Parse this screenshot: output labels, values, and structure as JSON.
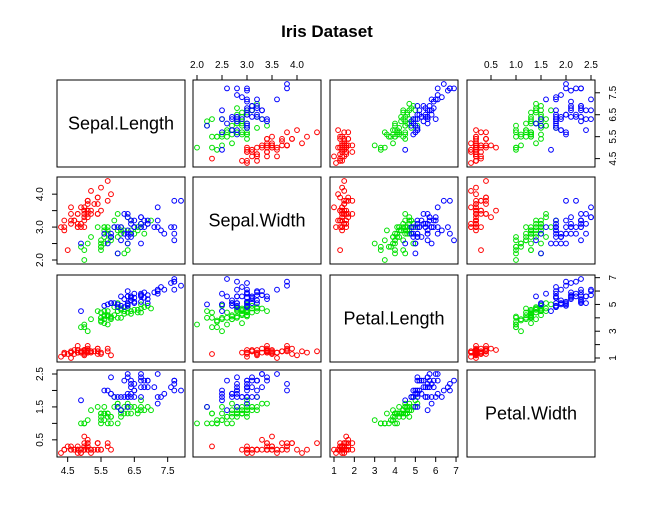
{
  "chart_data": {
    "type": "scatter",
    "subtype": "scatterplot-matrix",
    "title": "Iris Dataset",
    "grid": false,
    "variables": [
      "Sepal.Length",
      "Sepal.Width",
      "Petal.Length",
      "Petal.Width"
    ],
    "axes": {
      "Sepal.Length": {
        "range": [
          4.3,
          7.9
        ],
        "ticks": [
          4.5,
          5.5,
          6.5,
          7.5
        ],
        "tick_labels": [
          "4.5",
          "5.5",
          "6.5",
          "7.5"
        ]
      },
      "Sepal.Width": {
        "range": [
          2.0,
          4.4
        ],
        "ticks": [
          2.0,
          2.5,
          3.0,
          3.5,
          4.0
        ],
        "tick_labels": [
          "2.0",
          "2.5",
          "3.0",
          "3.5",
          "4.0"
        ],
        "tick_labels_left": [
          "2.0",
          "3.0",
          "4.0"
        ]
      },
      "Petal.Length": {
        "range": [
          1.0,
          6.9
        ],
        "ticks": [
          1,
          2,
          3,
          4,
          5,
          6,
          7
        ],
        "tick_labels": [
          "1",
          "2",
          "3",
          "4",
          "5",
          "6",
          "7"
        ],
        "tick_labels_right": [
          "1",
          "3",
          "5",
          "7"
        ]
      },
      "Petal.Width": {
        "range": [
          0.1,
          2.5
        ],
        "ticks": [
          0.5,
          1.0,
          1.5,
          2.0,
          2.5
        ],
        "tick_labels": [
          "0.5",
          "1.0",
          "1.5",
          "2.0",
          "2.5"
        ],
        "tick_labels_left": [
          "0.5",
          "1.5",
          "2.5"
        ]
      }
    },
    "series": [
      {
        "color": "#ff0000",
        "points": [
          [
            5.1,
            3.5,
            1.4,
            0.2
          ],
          [
            4.9,
            3.0,
            1.4,
            0.2
          ],
          [
            4.7,
            3.2,
            1.3,
            0.2
          ],
          [
            4.6,
            3.1,
            1.5,
            0.2
          ],
          [
            5.0,
            3.6,
            1.4,
            0.2
          ],
          [
            5.4,
            3.9,
            1.7,
            0.4
          ],
          [
            4.6,
            3.4,
            1.4,
            0.3
          ],
          [
            5.0,
            3.4,
            1.5,
            0.2
          ],
          [
            4.4,
            2.9,
            1.4,
            0.2
          ],
          [
            4.9,
            3.1,
            1.5,
            0.1
          ],
          [
            5.4,
            3.7,
            1.5,
            0.2
          ],
          [
            4.8,
            3.4,
            1.6,
            0.2
          ],
          [
            4.8,
            3.0,
            1.4,
            0.1
          ],
          [
            4.3,
            3.0,
            1.1,
            0.1
          ],
          [
            5.8,
            4.0,
            1.2,
            0.2
          ],
          [
            5.7,
            4.4,
            1.5,
            0.4
          ],
          [
            5.4,
            3.9,
            1.3,
            0.4
          ],
          [
            5.1,
            3.5,
            1.4,
            0.3
          ],
          [
            5.7,
            3.8,
            1.7,
            0.3
          ],
          [
            5.1,
            3.8,
            1.5,
            0.3
          ],
          [
            5.4,
            3.4,
            1.7,
            0.2
          ],
          [
            5.1,
            3.7,
            1.5,
            0.4
          ],
          [
            4.6,
            3.6,
            1.0,
            0.2
          ],
          [
            5.1,
            3.3,
            1.7,
            0.5
          ],
          [
            4.8,
            3.4,
            1.9,
            0.2
          ],
          [
            5.0,
            3.0,
            1.6,
            0.2
          ],
          [
            5.0,
            3.4,
            1.6,
            0.4
          ],
          [
            5.2,
            3.5,
            1.5,
            0.2
          ],
          [
            5.2,
            3.4,
            1.4,
            0.2
          ],
          [
            4.7,
            3.2,
            1.6,
            0.2
          ],
          [
            4.8,
            3.1,
            1.6,
            0.2
          ],
          [
            5.4,
            3.4,
            1.5,
            0.4
          ],
          [
            5.2,
            4.1,
            1.5,
            0.1
          ],
          [
            5.5,
            4.2,
            1.4,
            0.2
          ],
          [
            4.9,
            3.1,
            1.5,
            0.2
          ],
          [
            5.0,
            3.2,
            1.2,
            0.2
          ],
          [
            5.5,
            3.5,
            1.3,
            0.2
          ],
          [
            4.9,
            3.6,
            1.4,
            0.1
          ],
          [
            4.4,
            3.0,
            1.3,
            0.2
          ],
          [
            5.1,
            3.4,
            1.5,
            0.2
          ],
          [
            5.0,
            3.5,
            1.3,
            0.3
          ],
          [
            4.5,
            2.3,
            1.3,
            0.3
          ],
          [
            4.4,
            3.2,
            1.3,
            0.2
          ],
          [
            5.0,
            3.5,
            1.6,
            0.6
          ],
          [
            5.1,
            3.8,
            1.9,
            0.4
          ],
          [
            4.8,
            3.0,
            1.4,
            0.3
          ],
          [
            5.1,
            3.8,
            1.6,
            0.2
          ],
          [
            4.6,
            3.2,
            1.4,
            0.2
          ],
          [
            5.3,
            3.7,
            1.5,
            0.2
          ],
          [
            5.0,
            3.3,
            1.4,
            0.2
          ]
        ]
      },
      {
        "color": "#00e000",
        "points": [
          [
            7.0,
            3.2,
            4.7,
            1.4
          ],
          [
            6.4,
            3.2,
            4.5,
            1.5
          ],
          [
            6.9,
            3.1,
            4.9,
            1.5
          ],
          [
            5.5,
            2.3,
            4.0,
            1.3
          ],
          [
            6.5,
            2.8,
            4.6,
            1.5
          ],
          [
            5.7,
            2.8,
            4.5,
            1.3
          ],
          [
            6.3,
            3.3,
            4.7,
            1.6
          ],
          [
            4.9,
            2.4,
            3.3,
            1.0
          ],
          [
            6.6,
            2.9,
            4.6,
            1.3
          ],
          [
            5.2,
            2.7,
            3.9,
            1.4
          ],
          [
            5.0,
            2.0,
            3.5,
            1.0
          ],
          [
            5.9,
            3.0,
            4.2,
            1.5
          ],
          [
            6.0,
            2.2,
            4.0,
            1.0
          ],
          [
            6.1,
            2.9,
            4.7,
            1.4
          ],
          [
            5.6,
            2.9,
            3.6,
            1.3
          ],
          [
            6.7,
            3.1,
            4.4,
            1.4
          ],
          [
            5.6,
            3.0,
            4.5,
            1.5
          ],
          [
            5.8,
            2.7,
            4.1,
            1.0
          ],
          [
            6.2,
            2.2,
            4.5,
            1.5
          ],
          [
            5.6,
            2.5,
            3.9,
            1.1
          ],
          [
            5.9,
            3.2,
            4.8,
            1.8
          ],
          [
            6.1,
            2.8,
            4.0,
            1.3
          ],
          [
            6.3,
            2.5,
            4.9,
            1.5
          ],
          [
            6.1,
            2.8,
            4.7,
            1.2
          ],
          [
            6.4,
            2.9,
            4.3,
            1.3
          ],
          [
            6.6,
            3.0,
            4.4,
            1.4
          ],
          [
            6.8,
            2.8,
            4.8,
            1.4
          ],
          [
            6.7,
            3.0,
            5.0,
            1.7
          ],
          [
            6.0,
            2.9,
            4.5,
            1.5
          ],
          [
            5.7,
            2.6,
            3.5,
            1.0
          ],
          [
            5.5,
            2.4,
            3.8,
            1.1
          ],
          [
            5.5,
            2.4,
            3.7,
            1.0
          ],
          [
            5.8,
            2.7,
            3.9,
            1.2
          ],
          [
            6.0,
            2.7,
            5.1,
            1.6
          ],
          [
            5.4,
            3.0,
            4.5,
            1.5
          ],
          [
            6.0,
            3.4,
            4.5,
            1.6
          ],
          [
            6.7,
            3.1,
            4.7,
            1.5
          ],
          [
            6.3,
            2.3,
            4.4,
            1.3
          ],
          [
            5.6,
            3.0,
            4.1,
            1.3
          ],
          [
            5.5,
            2.5,
            4.0,
            1.3
          ],
          [
            5.5,
            2.6,
            4.4,
            1.2
          ],
          [
            6.1,
            3.0,
            4.6,
            1.4
          ],
          [
            5.8,
            2.6,
            4.0,
            1.2
          ],
          [
            5.0,
            2.3,
            3.3,
            1.0
          ],
          [
            5.6,
            2.7,
            4.2,
            1.3
          ],
          [
            5.7,
            3.0,
            4.2,
            1.2
          ],
          [
            5.7,
            2.9,
            4.2,
            1.3
          ],
          [
            6.2,
            2.9,
            4.3,
            1.3
          ],
          [
            5.1,
            2.5,
            3.0,
            1.1
          ],
          [
            5.7,
            2.8,
            4.1,
            1.3
          ]
        ]
      },
      {
        "color": "#0000ff",
        "points": [
          [
            6.3,
            3.3,
            6.0,
            2.5
          ],
          [
            5.8,
            2.7,
            5.1,
            1.9
          ],
          [
            7.1,
            3.0,
            5.9,
            2.1
          ],
          [
            6.3,
            2.9,
            5.6,
            1.8
          ],
          [
            6.5,
            3.0,
            5.8,
            2.2
          ],
          [
            7.6,
            3.0,
            6.6,
            2.1
          ],
          [
            4.9,
            2.5,
            4.5,
            1.7
          ],
          [
            7.3,
            2.9,
            6.3,
            1.8
          ],
          [
            6.7,
            2.5,
            5.8,
            1.8
          ],
          [
            7.2,
            3.6,
            6.1,
            2.5
          ],
          [
            6.5,
            3.2,
            5.1,
            2.0
          ],
          [
            6.4,
            2.7,
            5.3,
            1.9
          ],
          [
            6.8,
            3.0,
            5.5,
            2.1
          ],
          [
            5.7,
            2.5,
            5.0,
            2.0
          ],
          [
            5.8,
            2.8,
            5.1,
            2.4
          ],
          [
            6.4,
            3.2,
            5.3,
            2.3
          ],
          [
            6.5,
            3.0,
            5.5,
            1.8
          ],
          [
            7.7,
            3.8,
            6.7,
            2.2
          ],
          [
            7.7,
            2.6,
            6.9,
            2.3
          ],
          [
            6.0,
            2.2,
            5.0,
            1.5
          ],
          [
            6.9,
            3.2,
            5.7,
            2.3
          ],
          [
            5.6,
            2.8,
            4.9,
            2.0
          ],
          [
            7.7,
            2.8,
            6.7,
            2.0
          ],
          [
            6.3,
            2.7,
            4.9,
            1.8
          ],
          [
            6.7,
            3.3,
            5.7,
            2.1
          ],
          [
            7.2,
            3.2,
            6.0,
            1.8
          ],
          [
            6.2,
            2.8,
            4.8,
            1.8
          ],
          [
            6.1,
            3.0,
            4.9,
            1.8
          ],
          [
            6.4,
            2.8,
            5.6,
            2.1
          ],
          [
            7.2,
            3.0,
            5.8,
            1.6
          ],
          [
            7.4,
            2.8,
            6.1,
            1.9
          ],
          [
            7.9,
            3.8,
            6.4,
            2.0
          ],
          [
            6.4,
            2.8,
            5.6,
            2.2
          ],
          [
            6.3,
            2.8,
            5.1,
            1.5
          ],
          [
            6.1,
            2.6,
            5.6,
            1.4
          ],
          [
            7.7,
            3.0,
            6.1,
            2.3
          ],
          [
            6.3,
            3.4,
            5.6,
            2.4
          ],
          [
            6.4,
            3.1,
            5.5,
            1.8
          ],
          [
            6.0,
            3.0,
            4.8,
            1.8
          ],
          [
            6.9,
            3.1,
            5.4,
            2.1
          ],
          [
            6.7,
            3.1,
            5.6,
            2.4
          ],
          [
            6.9,
            3.1,
            5.1,
            2.3
          ],
          [
            5.8,
            2.7,
            5.1,
            1.9
          ],
          [
            6.8,
            3.2,
            5.9,
            2.3
          ],
          [
            6.7,
            3.3,
            5.7,
            2.5
          ],
          [
            6.7,
            3.0,
            5.2,
            2.3
          ],
          [
            6.3,
            2.5,
            5.0,
            1.9
          ],
          [
            6.5,
            3.0,
            5.2,
            2.0
          ],
          [
            6.2,
            3.4,
            5.4,
            2.3
          ],
          [
            5.9,
            3.0,
            5.1,
            1.8
          ]
        ]
      }
    ]
  }
}
